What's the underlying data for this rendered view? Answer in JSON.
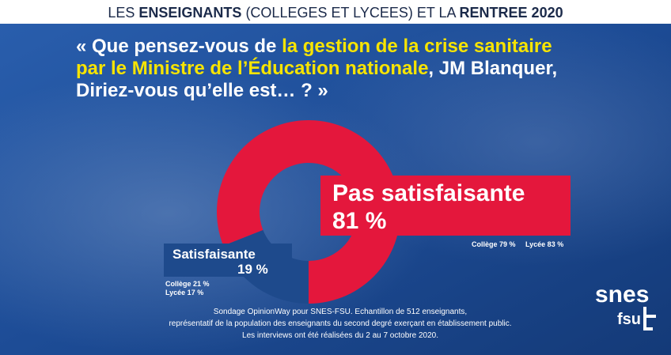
{
  "header": {
    "parts": [
      "LES ",
      "ENSEIGNANTS",
      " (COLLEGES ET LYCEES) ET LA ",
      "RENTREE 2020"
    ]
  },
  "question": {
    "lines": [
      [
        "« Que pensez-vous de ",
        "la gestion de la crise sanitaire"
      ],
      [
        "par le Ministre de l’Éducation nationale",
        ", JM Blanquer,"
      ],
      [
        "Diriez-vous qu’elle est… ? »"
      ]
    ]
  },
  "chart_data": {
    "type": "pie",
    "donut": true,
    "categories": [
      "Satisfaisante",
      "Pas satisfaisante"
    ],
    "values": [
      19,
      81
    ],
    "value_labels": [
      "19 %",
      "81 %"
    ],
    "colors": [
      "#1e4a8c",
      "#e4173c"
    ],
    "annotations": [
      [
        "Collège 21 %",
        "Lycée 17 %"
      ],
      [
        "Collège 79 %",
        "Lycée 83 %"
      ]
    ]
  },
  "footer": {
    "lines": [
      "Sondage OpinionWay pour SNES-FSU. Echantillon de 512 enseignants,",
      "représentatif de la population des enseignants du second degré exerçant en établissement public.",
      "Les interviews ont été réalisées du 2 au 7 octobre 2020."
    ]
  },
  "logo": {
    "top": "snes",
    "bottom": "fsu"
  }
}
